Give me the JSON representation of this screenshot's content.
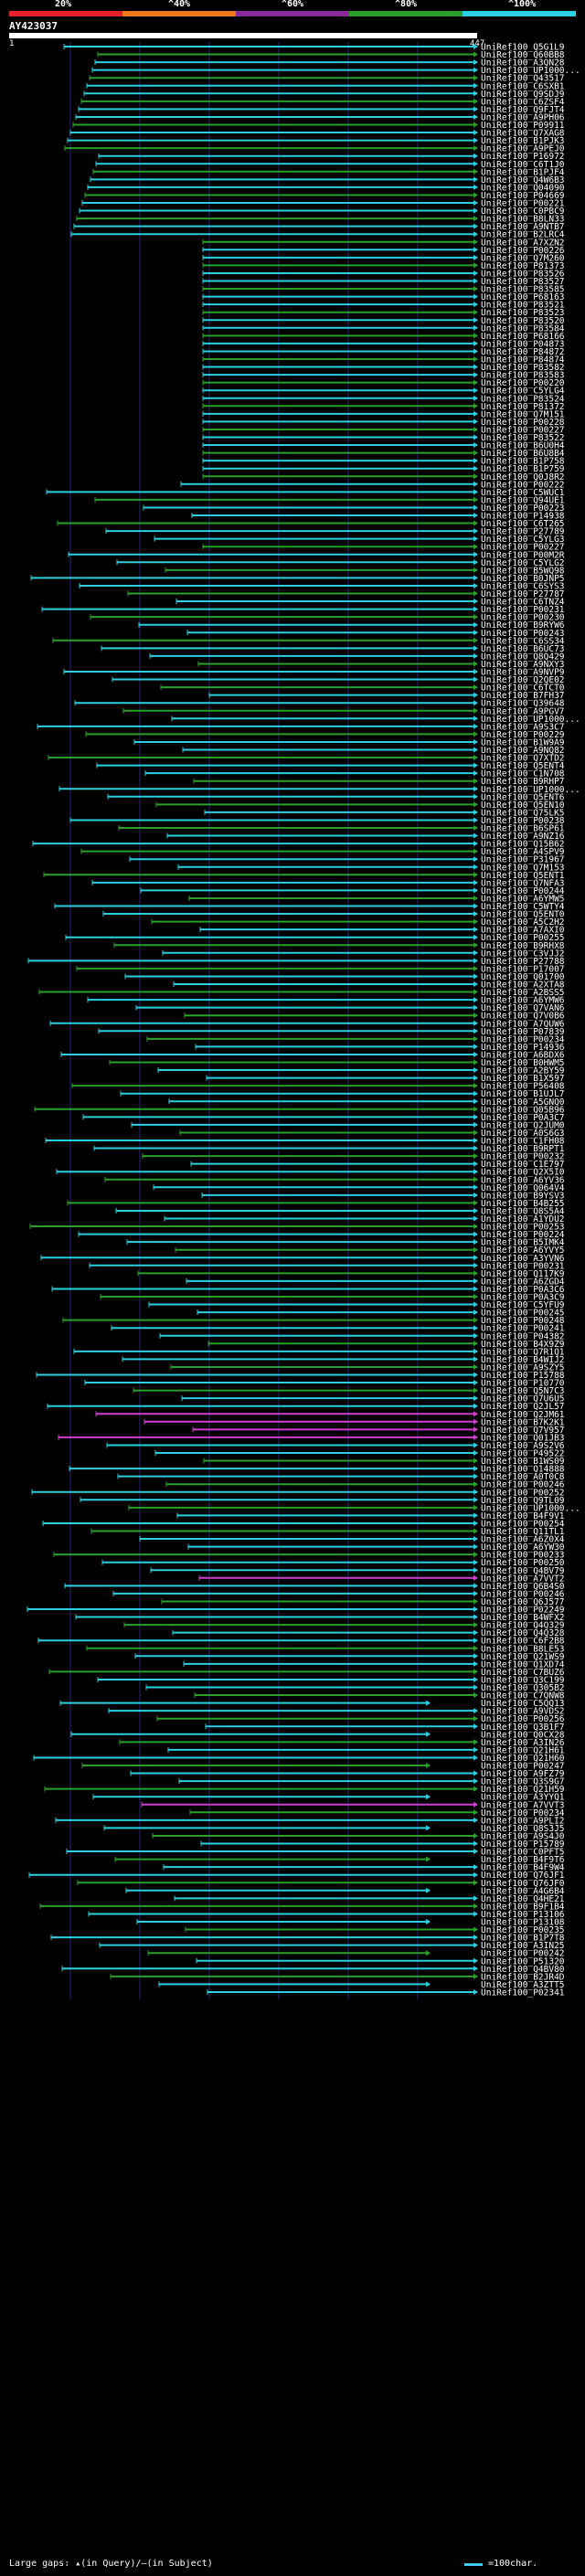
{
  "legend": {
    "labels": [
      "20%",
      "^40%",
      "^60%",
      "^80%",
      "^100%"
    ],
    "colors": [
      "#e8202a",
      "#f07a1a",
      "#8a2a9a",
      "#2aa02a",
      "#2ad0e0"
    ]
  },
  "query": {
    "name": "AY423037",
    "start": "1",
    "end": "447"
  },
  "footer": {
    "note": "Large gaps: ▴(in Query)/–(in Subject)",
    "scale": "=100char."
  },
  "hits": [
    "UniRef100_Q5G1L9",
    "UniRef100_Q60BB8",
    "UniRef100_A3QN28",
    "UniRef100_UP1000...",
    "UniRef100_Q43517",
    "UniRef100_C6SXB1",
    "UniRef100_Q9SDJ9",
    "UniRef100_C6ZSF4",
    "UniRef100_Q9FJT4",
    "UniRef100_A9PH06",
    "UniRef100_P09911",
    "UniRef100_Q7XAG8",
    "UniRef100_B1PJK3",
    "UniRef100_A9PEJ0",
    "UniRef100_P16972",
    "UniRef100_C6T1J0",
    "UniRef100_B1PJF4",
    "UniRef100_Q4W6B3",
    "UniRef100_Q04090",
    "UniRef100_P04669",
    "UniRef100_P00221",
    "UniRef100_C0PBC9",
    "UniRef100_B8LN33",
    "UniRef100_A9NTB7",
    "UniRef100_B2LRC4",
    "UniRef100_A7XZN2",
    "UniRef100_P00226",
    "UniRef100_Q7M260",
    "UniRef100_P81373",
    "UniRef100_P83526",
    "UniRef100_P83527",
    "UniRef100_P83585",
    "UniRef100_P68163",
    "UniRef100_P83521",
    "UniRef100_P83523",
    "UniRef100_P83520",
    "UniRef100_P83584",
    "UniRef100_P68166",
    "UniRef100_P04873",
    "UniRef100_P84872",
    "UniRef100_P84874",
    "UniRef100_P83582",
    "UniRef100_P83583",
    "UniRef100_P00220",
    "UniRef100_C5YLG4",
    "UniRef100_P83524",
    "UniRef100_P81372",
    "UniRef100_Q7M151",
    "UniRef100_P00228",
    "UniRef100_P00227",
    "UniRef100_P83522",
    "UniRef100_B6U0H4",
    "UniRef100_B6U8B4",
    "UniRef100_B1P758",
    "UniRef100_B1P759",
    "UniRef100_Q0J8R2",
    "UniRef100_P00222",
    "UniRef100_C5WUC1",
    "UniRef100_Q94UE1",
    "UniRef100_P00223",
    "UniRef100_P14938",
    "UniRef100_C6T265",
    "UniRef100_P27789",
    "UniRef100_C5YLG3",
    "UniRef100_P00227",
    "UniRef100_P00M2R",
    "UniRef100_C5YLG2",
    "UniRef100_B5WQ98",
    "UniRef100_B0JNP5",
    "UniRef100_C6SYS3",
    "UniRef100_P27787",
    "UniRef100_C6TNZ4",
    "UniRef100_P00231",
    "UniRef100_P00230",
    "UniRef100_B9RYW6",
    "UniRef100_P00243",
    "UniRef100_C6SS34",
    "UniRef100_B6UC73",
    "UniRef100_Q8Q429",
    "UniRef100_A9NXY3",
    "UniRef100_A9NVP9",
    "UniRef100_Q2QE02",
    "UniRef100_C6TCT0",
    "UniRef100_B7FH37",
    "UniRef100_Q39648",
    "UniRef100_A9PGV7",
    "UniRef100_UP1000...",
    "UniRef100_A9S3C7",
    "UniRef100_P00229",
    "UniRef100_B1W9A9",
    "UniRef100_A9NQ82",
    "UniRef100_Q7XTD2",
    "UniRef100_Q5ENT4",
    "UniRef100_C1N708",
    "UniRef100_B9RHP7",
    "UniRef100_UP1000...",
    "UniRef100_Q5ENT6",
    "UniRef100_Q5EN10",
    "UniRef100_Q75LK5",
    "UniRef100_P00238",
    "UniRef100_B6SP61",
    "UniRef100_A9NZ16",
    "UniRef100_Q15B62",
    "UniRef100_A4SPV9",
    "UniRef100_P31967",
    "UniRef100_Q7M153",
    "UniRef100_Q5ENT1",
    "UniRef100_Q7NFA3",
    "UniRef100_P00244",
    "UniRef100_A6YMW5",
    "UniRef100_C5WTY4",
    "UniRef100_Q5ENT0",
    "UniRef100_A5C2H2",
    "UniRef100_A7AXI0",
    "UniRef100_P00255",
    "UniRef100_B9RHX8",
    "UniRef100_C3VJJ2",
    "UniRef100_P27788",
    "UniRef100_P17007",
    "UniRef100_Q01700",
    "UniRef100_A2XTA8",
    "UniRef100_A2BSS5",
    "UniRef100_A6YMW6",
    "UniRef100_Q7VAN6",
    "UniRef100_Q7V0B6",
    "UniRef100_A7QUW6",
    "UniRef100_P07839",
    "UniRef100_P00234",
    "UniRef100_P14936",
    "UniRef100_A6BDX6",
    "UniRef100_B0HWM5",
    "UniRef100_A2BY59",
    "UniRef100_B1X597",
    "UniRef100_P56408",
    "UniRef100_B1UJL7",
    "UniRef100_A5GNQ0",
    "UniRef100_Q05B96",
    "UniRef100_P0A3C7",
    "UniRef100_Q2JUM0",
    "UniRef100_A0S6G3",
    "UniRef100_C1FH08",
    "UniRef100_B9RPT1",
    "UniRef100_P00232",
    "UniRef100_C1E797",
    "UniRef100_Q2X5I0",
    "UniRef100_A6YV36",
    "UniRef100_Q064V4",
    "UniRef100_B9YSV3",
    "UniRef100_B4B255",
    "UniRef100_Q8S5A4",
    "UniRef100_A1YDU2",
    "UniRef100_P00253",
    "UniRef100_P00224",
    "UniRef100_B5IMK4",
    "UniRef100_A6YVY5",
    "UniRef100_A3YVN6",
    "UniRef100_P00231",
    "UniRef100_Q117K9",
    "UniRef100_A6ZGD4",
    "UniRef100_P0A3C6",
    "UniRef100_P0A3C9",
    "UniRef100_C5YFU9",
    "UniRef100_P00245",
    "UniRef100_P00248",
    "UniRef100_P00241",
    "UniRef100_P04382",
    "UniRef100_B4X9Z9",
    "UniRef100_Q7R1Q1",
    "UniRef100_B4WIJ2",
    "UniRef100_A9SZY5",
    "UniRef100_P15788",
    "UniRef100_P10770",
    "UniRef100_Q5N7C3",
    "UniRef100_Q7U6U5",
    "UniRef100_Q2JL57",
    "UniRef100_Q2JM61",
    "UniRef100_B7K2K1",
    "UniRef100_Q7V957",
    "UniRef100_Q01JB3",
    "UniRef100_A9S2V6",
    "UniRef100_P49522",
    "UniRef100_B1WS09",
    "UniRef100_Q14888",
    "UniRef100_A0T0C8",
    "UniRef100_P00246",
    "UniRef100_P00252",
    "UniRef100_Q9TL09",
    "UniRef100_UP1000...",
    "UniRef100_B4F9V1",
    "UniRef100_P00254",
    "UniRef100_Q11TL1",
    "UniRef100_A6Z0X4",
    "UniRef100_A6YW30",
    "UniRef100_P00233",
    "UniRef100_P00250",
    "UniRef100_Q4BV79",
    "UniRef100_A7VVT2",
    "UniRef100_Q6B4S0",
    "UniRef100_P00246",
    "UniRef100_Q6J577",
    "UniRef100_P02249",
    "UniRef100_B4WFX2",
    "UniRef100_Q4Q329",
    "UniRef100_Q4Q328",
    "UniRef100_C6F2B8",
    "UniRef100_B8LE53",
    "UniRef100_Q21WS9",
    "UniRef100_Q1XD74",
    "UniRef100_C7BUZ6",
    "UniRef100_Q3C199",
    "UniRef100_Q305B2",
    "UniRef100_C7QNW8",
    "UniRef100_C5QQ13",
    "UniRef100_A9VDS2",
    "UniRef100_P00256",
    "UniRef100_Q3B1F7",
    "UniRef100_Q0CX28",
    "UniRef100_A3IN26",
    "UniRef100_Q21H61",
    "UniRef100_Q21H60",
    "UniRef100_P00247",
    "UniRef100_A9FZ79",
    "UniRef100_Q3S9G7",
    "UniRef100_Q21H59",
    "UniRef100_A3YYQ1",
    "UniRef100_A7VVT3",
    "UniRef100_P00234",
    "UniRef100_A9PLI2",
    "UniRef100_Q8S3J5",
    "UniRef100_A9S4J0",
    "UniRef100_P15789",
    "UniRef100_C0PFT5",
    "UniRef100_B4F9T6",
    "UniRef100_B4F9W4",
    "UniRef100_Q76JF1",
    "UniRef100_Q76JF0",
    "UniRef100_A4G6B4",
    "UniRef100_Q4HE21",
    "UniRef100_B9F1B4",
    "UniRef100_P13106",
    "UniRef100_P13108",
    "UniRef100_P00235",
    "UniRef100_B1P7T8",
    "UniRef100_A3IN25",
    "UniRef100_P00242",
    "UniRef100_P51320",
    "UniRef100_Q4BV80",
    "UniRef100_B2JR4D",
    "UniRef100_A3ZTT5",
    "UniRef100_P02341"
  ]
}
